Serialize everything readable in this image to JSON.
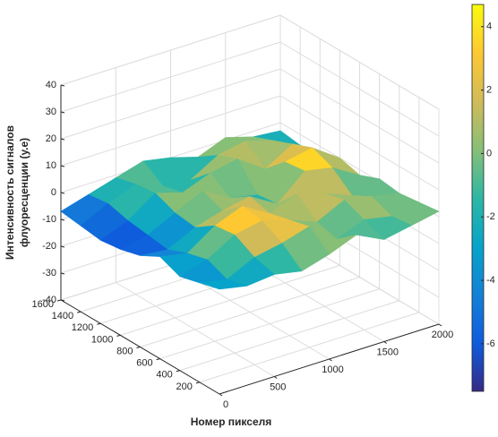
{
  "chart_data": {
    "type": "surface",
    "xlabel": "Номер пикселя",
    "zlabel": [
      "Интенсивность сигналов",
      "флуоресценции (у.е)"
    ],
    "xlim": [
      0,
      2000
    ],
    "xticks": [
      0,
      500,
      1000,
      1500,
      2000
    ],
    "ylim": [
      0,
      1600
    ],
    "yticks": [
      200,
      400,
      600,
      800,
      1000,
      1200,
      1400,
      1600
    ],
    "zlim": [
      -40,
      40
    ],
    "zticks": [
      -40,
      -30,
      -20,
      -10,
      0,
      10,
      20,
      30,
      40
    ],
    "x": [
      0,
      250,
      500,
      750,
      1000,
      1250,
      1500,
      1750,
      2000
    ],
    "y": [
      0,
      200,
      400,
      600,
      800,
      1000,
      1200,
      1400,
      1600
    ],
    "z": [
      [
        -1,
        -3,
        -2,
        -4,
        -1,
        3,
        -2,
        0,
        2
      ],
      [
        -3,
        -5,
        0,
        2,
        5,
        -3,
        1,
        -1,
        1
      ],
      [
        -5,
        -2,
        4,
        6,
        3,
        -1,
        4,
        2,
        0
      ],
      [
        -2,
        -4,
        3,
        7,
        1,
        5,
        2,
        -2,
        1
      ],
      [
        -6,
        -7,
        -2,
        1,
        3,
        -3,
        6,
        4,
        -2
      ],
      [
        -8,
        -6,
        -1,
        4,
        -2,
        -4,
        5,
        7,
        0
      ],
      [
        -9,
        -5,
        2,
        -1,
        3,
        5,
        -2,
        4,
        -3
      ],
      [
        -8,
        -3,
        1,
        -3,
        -4,
        2,
        4,
        1,
        -4
      ],
      [
        -7,
        -4,
        -1,
        2,
        0,
        -3,
        1,
        -2,
        -3
      ]
    ],
    "grid": true,
    "colormap": [
      "#352a87",
      "#0f5cdd",
      "#1481d6",
      "#06a4ca",
      "#2eb7a4",
      "#87bf77",
      "#d1bb59",
      "#fec832",
      "#f9fb0e"
    ],
    "clim": [
      -7.5,
      4.7
    ],
    "cticks": [
      -6,
      -4,
      -2,
      0,
      2,
      4
    ]
  }
}
